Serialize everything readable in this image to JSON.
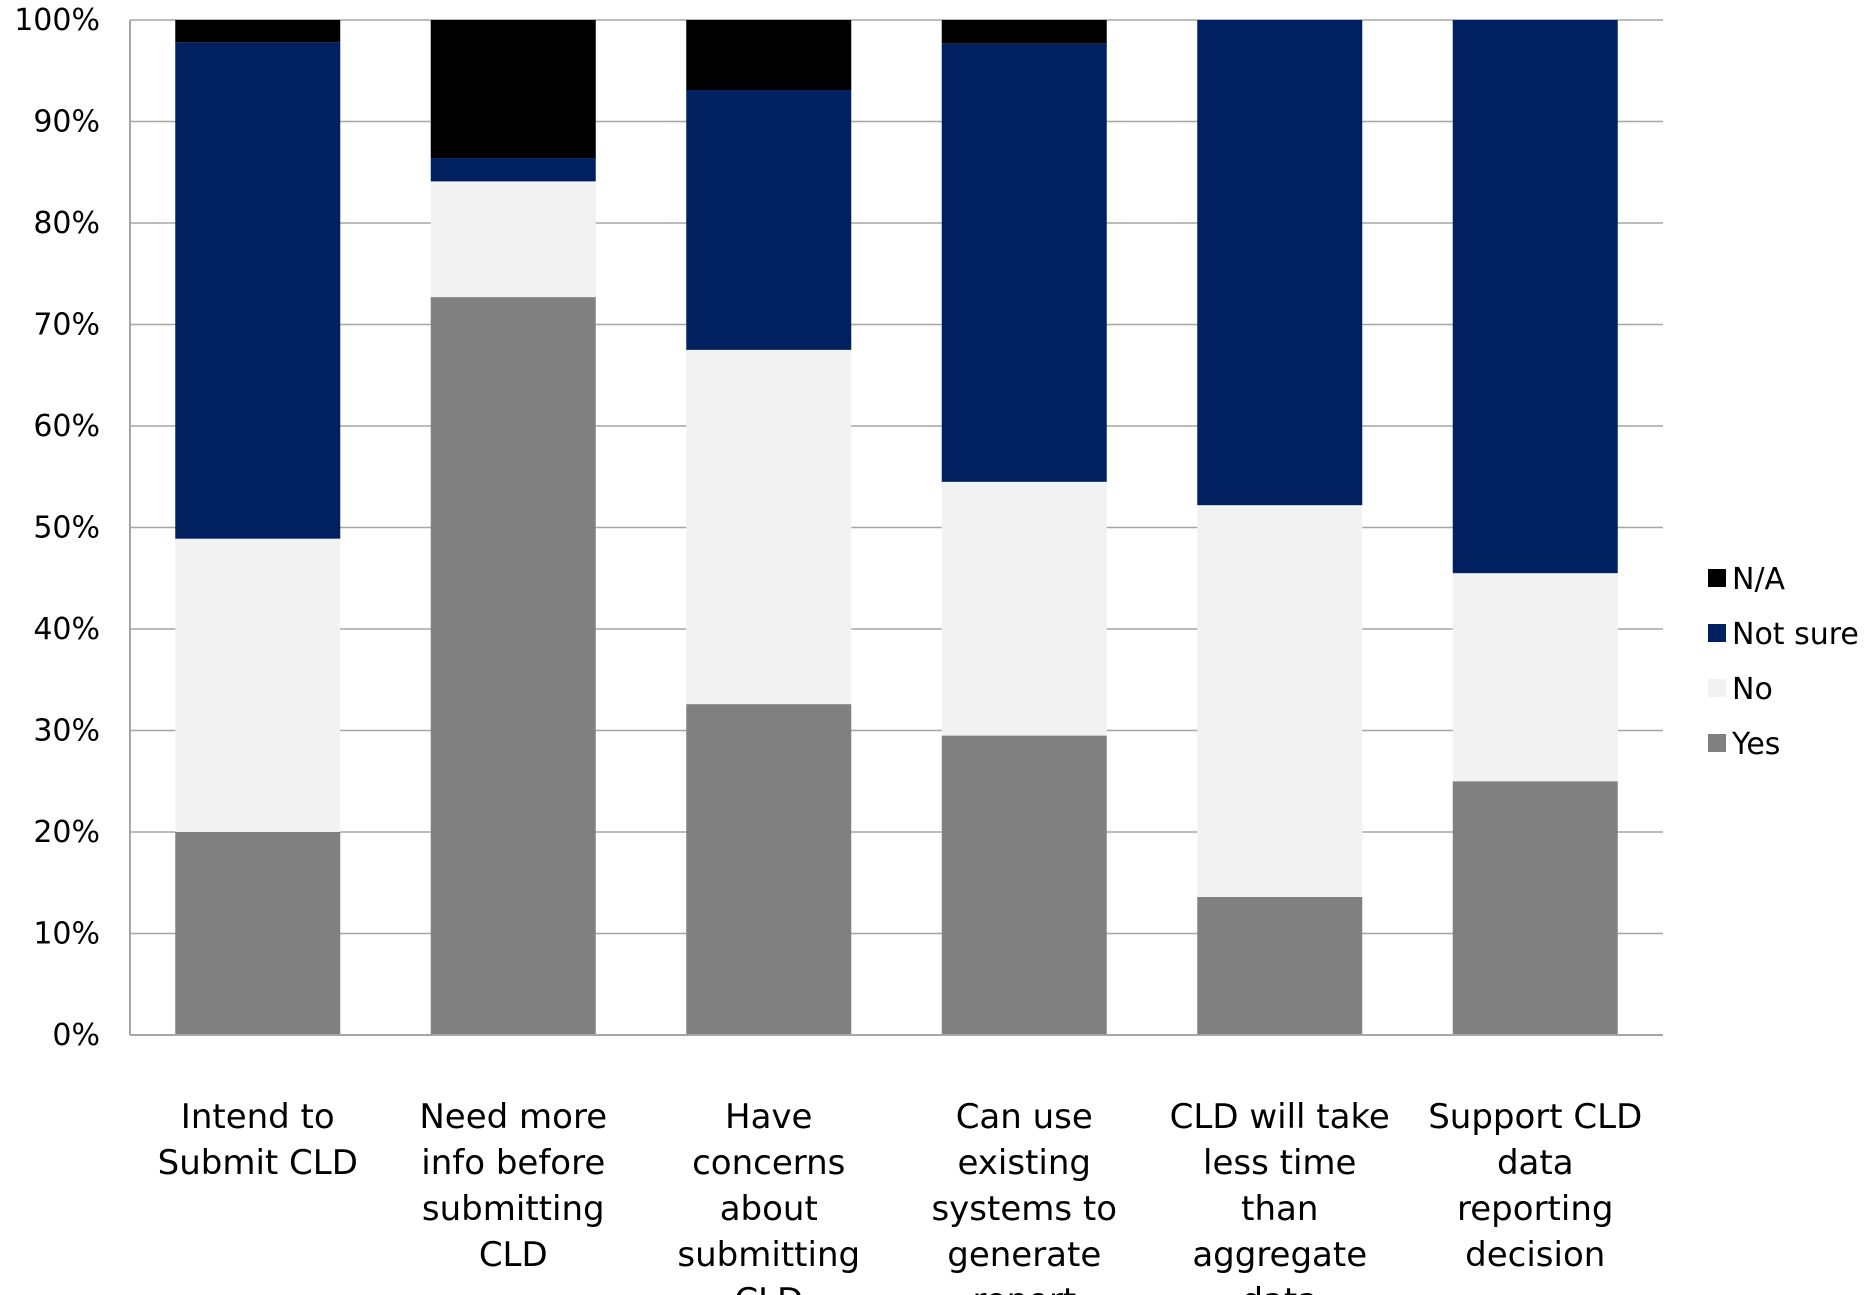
{
  "chart_data": {
    "type": "bar",
    "stacked": true,
    "categories": [
      [
        "Intend to",
        "Submit CLD"
      ],
      [
        "Need more",
        "info before",
        "submitting",
        "CLD"
      ],
      [
        "Have",
        "concerns",
        "about",
        "submitting",
        "CLD"
      ],
      [
        "Can use",
        "existing",
        "systems to",
        "generate",
        "report"
      ],
      [
        "CLD will take",
        "less time",
        "than",
        "aggregate",
        "data"
      ],
      [
        "Support CLD",
        "data",
        "reporting",
        "decision"
      ]
    ],
    "series": [
      {
        "name": "Yes",
        "color": "#808080",
        "values": [
          20,
          72.7,
          32.6,
          29.5,
          13.6,
          25
        ]
      },
      {
        "name": "No",
        "color": "#f2f2f2",
        "values": [
          28.9,
          11.4,
          34.9,
          25,
          38.6,
          20.5
        ]
      },
      {
        "name": "Not sure",
        "color": "#002060",
        "values": [
          48.9,
          2.3,
          25.6,
          43.2,
          47.8,
          54.5
        ]
      },
      {
        "name": "N/A",
        "color": "#000000",
        "values": [
          2.2,
          13.6,
          6.9,
          2.3,
          0,
          0
        ]
      }
    ],
    "yticks": [
      "0%",
      "10%",
      "20%",
      "30%",
      "40%",
      "50%",
      "60%",
      "70%",
      "80%",
      "90%",
      "100%"
    ],
    "ylim": [
      0,
      100
    ],
    "grid": true,
    "legend": "right"
  }
}
